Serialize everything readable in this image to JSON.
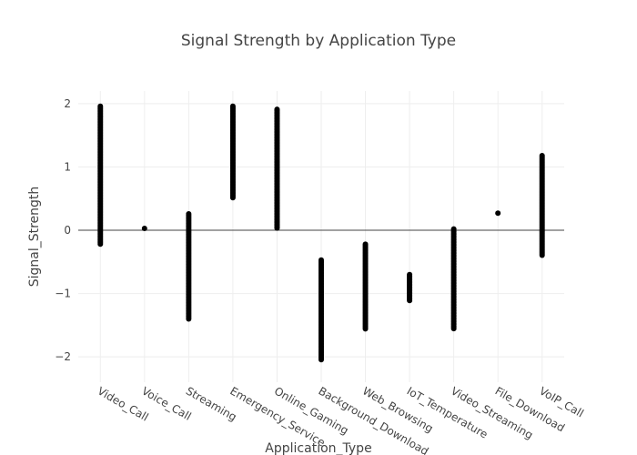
{
  "chart_data": {
    "type": "scatter",
    "title": "Signal Strength by Application Type",
    "xlabel": "Application_Type",
    "ylabel": "Signal_Strength",
    "categories": [
      "Video_Call",
      "Voice_Call",
      "Streaming",
      "Emergency_Service",
      "Online_Gaming",
      "Background_Download",
      "Web_Browsing",
      "IoT_Temperature",
      "Video_Streaming",
      "File_Download",
      "VoIP_Call"
    ],
    "ylim": [
      -2.4,
      2.2
    ],
    "yticks": [
      -2,
      -1,
      0,
      1,
      2
    ],
    "grid": true,
    "marker_color": "#000000",
    "series": [
      {
        "category": "Video_Call",
        "min": -0.22,
        "max": 1.96
      },
      {
        "category": "Voice_Call",
        "min": 0.03,
        "max": 0.03
      },
      {
        "category": "Streaming",
        "min": -1.42,
        "max": 0.26
      },
      {
        "category": "Emergency_Service",
        "min": 0.51,
        "max": 1.96
      },
      {
        "category": "Online_Gaming",
        "min": 0.03,
        "max": 1.91
      },
      {
        "category": "Background_Download",
        "min": -2.05,
        "max": -0.47
      },
      {
        "category": "Web_Browsing",
        "min": -1.57,
        "max": -0.22
      },
      {
        "category": "IoT_Temperature",
        "min": -1.13,
        "max": -0.7
      },
      {
        "category": "Video_Streaming",
        "min": -1.57,
        "max": 0.02
      },
      {
        "category": "File_Download",
        "min": 0.27,
        "max": 0.27
      },
      {
        "category": "VoIP_Call",
        "min": -0.41,
        "max": 1.18
      }
    ]
  }
}
